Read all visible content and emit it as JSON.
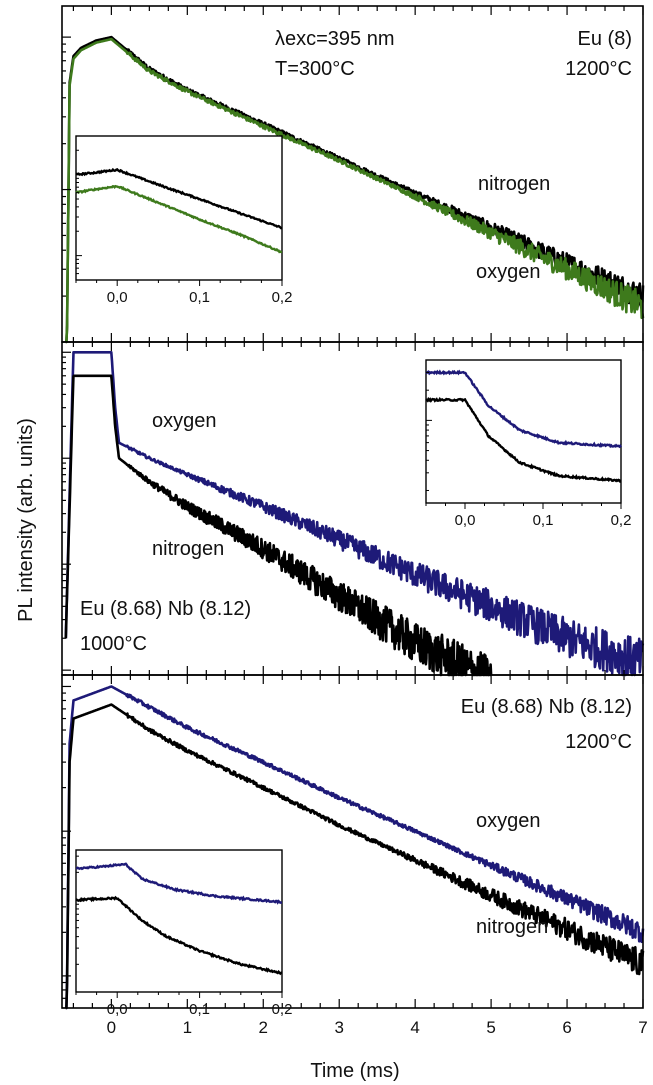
{
  "figure": {
    "ylabel": "PL intensity (arb. units)",
    "xlabel": "Time (ms)",
    "xticks": [
      "0",
      "1",
      "2",
      "3",
      "4",
      "5",
      "6",
      "7"
    ]
  },
  "colors": {
    "nitrogen": "#000000",
    "oxygen_panel1": "#3e7a1c",
    "oxygen_panels23": "#1e1a78"
  },
  "chart_data": [
    {
      "type": "line",
      "panel": "top",
      "annotations": [
        "λexc=395 nm",
        "T=300°C",
        "Eu (8)",
        "1200°C"
      ],
      "x_range": [
        -0.65,
        7.0
      ],
      "y_scale": "log",
      "series": [
        {
          "name": "nitrogen",
          "color": "#000000",
          "x": [
            -0.6,
            -0.55,
            -0.5,
            -0.4,
            -0.2,
            0.0,
            0.5,
            1,
            2,
            3,
            4,
            5,
            6,
            7
          ],
          "y": [
            0.002,
            0.5,
            0.75,
            0.85,
            0.95,
            1.0,
            0.62,
            0.45,
            0.27,
            0.16,
            0.095,
            0.056,
            0.033,
            0.02
          ]
        },
        {
          "name": "oxygen",
          "color": "#3e7a1c",
          "x": [
            -0.6,
            -0.55,
            -0.5,
            -0.4,
            -0.2,
            0.0,
            0.5,
            1,
            2,
            3,
            4,
            5,
            6,
            7
          ],
          "y": [
            0.002,
            0.48,
            0.72,
            0.82,
            0.92,
            0.97,
            0.6,
            0.44,
            0.26,
            0.155,
            0.09,
            0.052,
            0.03,
            0.017
          ]
        }
      ],
      "inset": {
        "xticks": [
          "0,0",
          "0,1",
          "0,2"
        ],
        "x_range": [
          -0.05,
          0.2
        ],
        "series": [
          {
            "name": "nitrogen",
            "x": [
              -0.05,
              -0.03,
              0.0,
              0.05,
              0.1,
              0.15,
              0.2
            ],
            "y": [
              1.0,
              1.05,
              1.15,
              0.75,
              0.5,
              0.33,
              0.22
            ]
          },
          {
            "name": "oxygen",
            "x": [
              -0.05,
              -0.03,
              0.0,
              0.05,
              0.1,
              0.15,
              0.2
            ],
            "y": [
              0.6,
              0.65,
              0.72,
              0.45,
              0.28,
              0.18,
              0.11
            ]
          }
        ]
      }
    },
    {
      "type": "line",
      "panel": "middle",
      "annotations": [
        "Eu (8.68) Nb (8.12)",
        "1000°C"
      ],
      "labels": {
        "oxygen": "oxygen",
        "nitrogen": "nitrogen"
      },
      "x_range": [
        -0.65,
        7.0
      ],
      "y_scale": "log",
      "series": [
        {
          "name": "oxygen",
          "color": "#1e1a78",
          "x": [
            -0.6,
            -0.5,
            0.0,
            0.05,
            0.1,
            0.5,
            1,
            2,
            3,
            4,
            5,
            6,
            7
          ],
          "y": [
            0.002,
            1.0,
            1.0,
            0.3,
            0.14,
            0.1,
            0.07,
            0.035,
            0.017,
            0.008,
            0.004,
            0.002,
            0.0012
          ]
        },
        {
          "name": "nitrogen",
          "color": "#000000",
          "x": [
            -0.6,
            -0.5,
            0.0,
            0.05,
            0.1,
            0.5,
            1,
            2,
            3,
            4,
            5
          ],
          "y": [
            0.002,
            0.6,
            0.6,
            0.2,
            0.1,
            0.06,
            0.035,
            0.014,
            0.005,
            0.0018,
            0.0008
          ]
        }
      ],
      "inset": {
        "xticks": [
          "0,0",
          "0,1",
          "0,2"
        ],
        "x_range": [
          -0.05,
          0.2
        ],
        "series": [
          {
            "name": "oxygen",
            "x": [
              -0.05,
              -0.02,
              0.0,
              0.03,
              0.07,
              0.12,
              0.2
            ],
            "y": [
              3.0,
              3.0,
              3.0,
              1.4,
              0.8,
              0.6,
              0.55
            ]
          },
          {
            "name": "nitrogen",
            "x": [
              -0.05,
              -0.02,
              0.0,
              0.03,
              0.07,
              0.12,
              0.2
            ],
            "y": [
              1.6,
              1.6,
              1.6,
              0.7,
              0.38,
              0.28,
              0.25
            ]
          }
        ]
      }
    },
    {
      "type": "line",
      "panel": "bottom",
      "annotations": [
        "Eu (8.68) Nb (8.12)",
        "1200°C"
      ],
      "x_range": [
        -0.65,
        7.0
      ],
      "y_scale": "log",
      "series": [
        {
          "name": "oxygen",
          "color": "#1e1a78",
          "x": [
            -0.6,
            -0.55,
            -0.5,
            0.0,
            0.5,
            1,
            2,
            3,
            4,
            5,
            6,
            7
          ],
          "y": [
            0.0015,
            0.4,
            0.8,
            1.0,
            0.72,
            0.52,
            0.3,
            0.17,
            0.1,
            0.058,
            0.034,
            0.02
          ]
        },
        {
          "name": "nitrogen",
          "color": "#000000",
          "x": [
            -0.6,
            -0.55,
            -0.5,
            0.0,
            0.5,
            1,
            2,
            3,
            4,
            5,
            6,
            7
          ],
          "y": [
            0.0015,
            0.3,
            0.6,
            0.75,
            0.5,
            0.36,
            0.2,
            0.11,
            0.063,
            0.036,
            0.021,
            0.012
          ]
        }
      ],
      "inset": {
        "xticks": [
          "0,0",
          "0,1",
          "0,2"
        ],
        "x_range": [
          -0.05,
          0.2
        ],
        "series": [
          {
            "name": "oxygen",
            "x": [
              -0.05,
              -0.02,
              0.0,
              0.01,
              0.03,
              0.07,
              0.12,
              0.2
            ],
            "y": [
              2.2,
              2.3,
              2.4,
              2.45,
              1.7,
              1.3,
              1.1,
              0.95
            ]
          },
          {
            "name": "nitrogen",
            "x": [
              -0.05,
              -0.02,
              0.0,
              0.03,
              0.06,
              0.1,
              0.15,
              0.2
            ],
            "y": [
              1.0,
              1.03,
              1.05,
              0.6,
              0.4,
              0.28,
              0.2,
              0.16
            ]
          }
        ]
      }
    }
  ]
}
